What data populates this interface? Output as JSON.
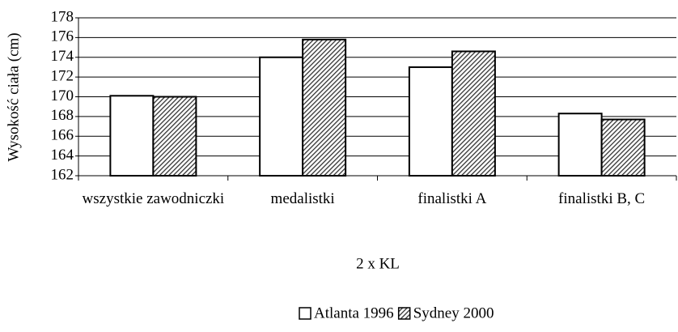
{
  "chart_data": {
    "type": "bar",
    "y_label": "Wysokość ciała (cm)",
    "x_label": "2 x KL",
    "categories": [
      "wszystkie zawodniczki",
      "medalistki",
      "finalistki A",
      "finalistki B, C"
    ],
    "series": [
      {
        "name": "Atlanta 1996",
        "color": "#ffffff",
        "values": [
          170.1,
          174.0,
          173.0,
          168.3
        ]
      },
      {
        "name": "Sydney 2000",
        "color": "#333333",
        "hatch": true,
        "values": [
          170.0,
          175.8,
          174.6,
          167.7
        ]
      }
    ],
    "ylim": [
      162,
      178
    ],
    "yticks": [
      162,
      164,
      166,
      168,
      170,
      172,
      174,
      176,
      178
    ],
    "grid": true,
    "legend": "bottom"
  }
}
